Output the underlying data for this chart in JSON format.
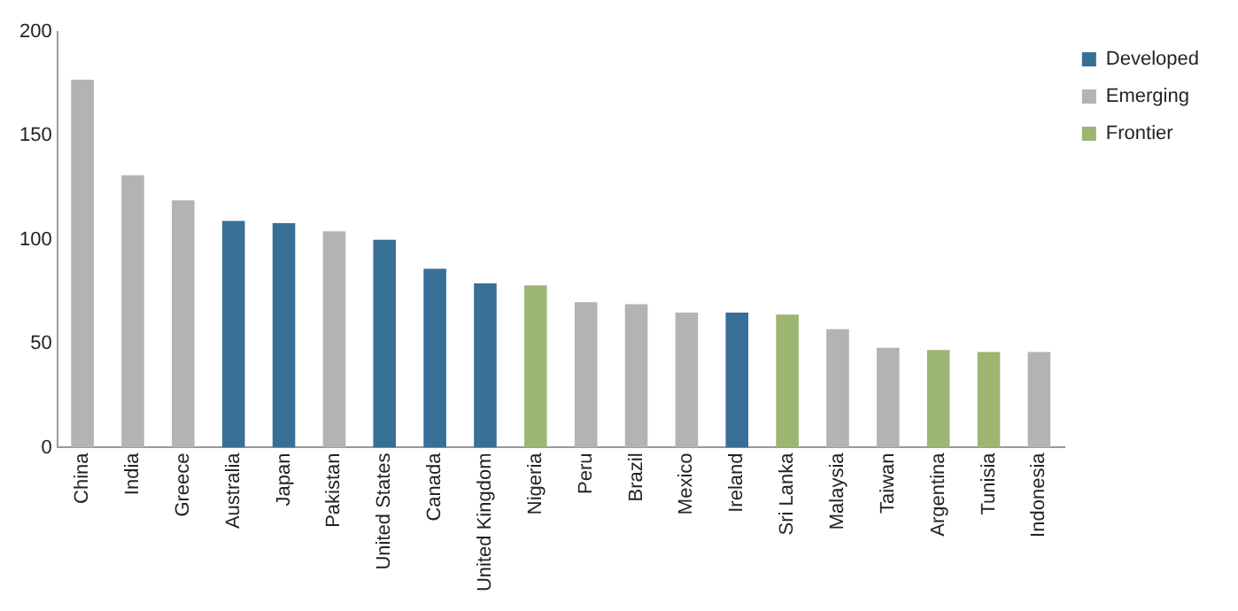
{
  "chart_data": {
    "type": "bar",
    "stacked": true,
    "categories": [
      "China",
      "India",
      "Greece",
      "Australia",
      "Japan",
      "Pakistan",
      "United States",
      "Canada",
      "United Kingdom",
      "Nigeria",
      "Peru",
      "Brazil",
      "Mexico",
      "Ireland",
      "Sri Lanka",
      "Malaysia",
      "Taiwan",
      "Argentina",
      "Tunisia",
      "Indonesia"
    ],
    "series": [
      {
        "name": "Developed",
        "color": "#386f97",
        "values": [
          null,
          null,
          null,
          109,
          108,
          null,
          100,
          86,
          79,
          null,
          null,
          null,
          null,
          65,
          null,
          null,
          null,
          null,
          null,
          null
        ]
      },
      {
        "name": "Emerging",
        "color": "#b3b3b3",
        "values": [
          177,
          131,
          119,
          null,
          null,
          104,
          null,
          null,
          null,
          null,
          70,
          69,
          65,
          null,
          null,
          57,
          48,
          null,
          null,
          46
        ]
      },
      {
        "name": "Frontier",
        "color": "#9db573",
        "values": [
          null,
          null,
          null,
          null,
          null,
          null,
          null,
          null,
          null,
          78,
          null,
          null,
          null,
          null,
          64,
          null,
          null,
          47,
          46,
          null
        ]
      }
    ],
    "ylim": [
      0,
      200
    ],
    "yticks": [
      0,
      50,
      100,
      150,
      200
    ],
    "grid": false,
    "legend": "top right"
  }
}
